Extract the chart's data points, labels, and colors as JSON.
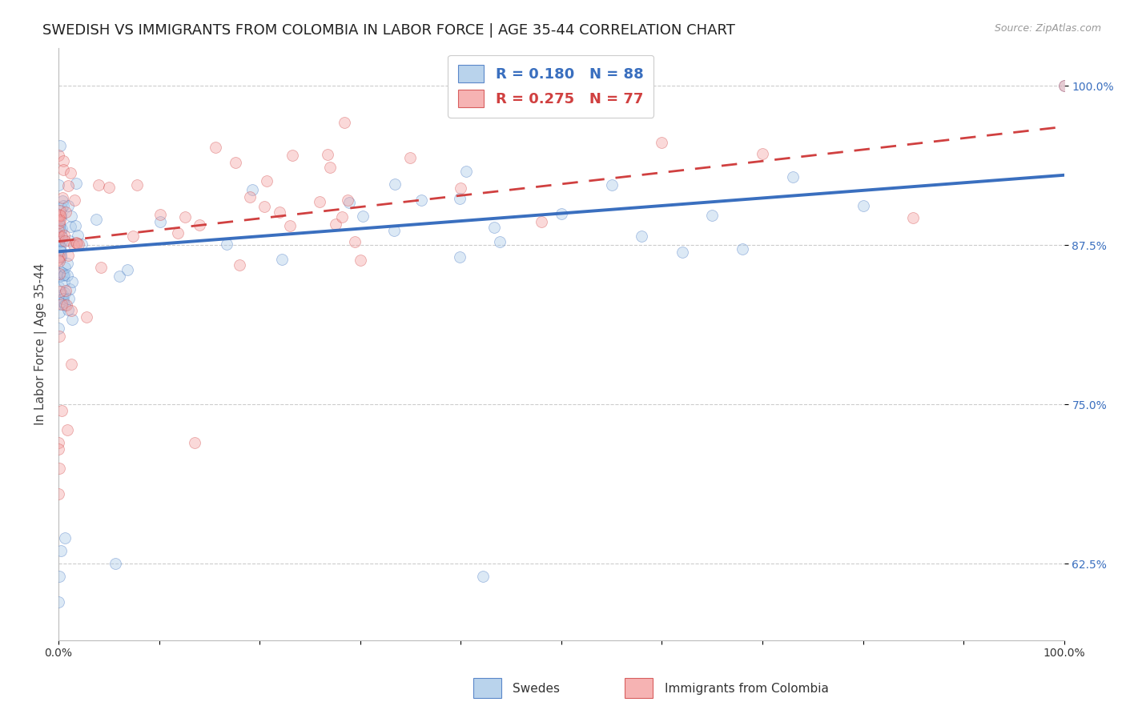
{
  "title": "SWEDISH VS IMMIGRANTS FROM COLOMBIA IN LABOR FORCE | AGE 35-44 CORRELATION CHART",
  "source_text": "Source: ZipAtlas.com",
  "ylabel": "In Labor Force | Age 35-44",
  "xlim": [
    0.0,
    1.0
  ],
  "ylim": [
    0.565,
    1.03
  ],
  "yticks": [
    0.625,
    0.75,
    0.875,
    1.0
  ],
  "ytick_labels": [
    "62.5%",
    "75.0%",
    "87.5%",
    "100.0%"
  ],
  "legend_blue_label": "R = 0.180   N = 88",
  "legend_pink_label": "R = 0.275   N = 77",
  "blue_color": "#a8c8e8",
  "pink_color": "#f4a0a0",
  "trend_blue_color": "#3a6fbf",
  "trend_pink_color": "#d04040",
  "background_color": "#ffffff",
  "grid_color": "#cccccc",
  "title_fontsize": 13,
  "axis_label_fontsize": 11,
  "tick_fontsize": 10,
  "marker_size": 100,
  "marker_alpha": 0.4,
  "blue_trend_start_y": 0.87,
  "blue_trend_end_y": 0.93,
  "pink_trend_start_y": 0.878,
  "pink_trend_end_y": 0.968
}
